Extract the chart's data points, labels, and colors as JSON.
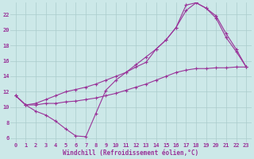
{
  "xlabel": "Windchill (Refroidissement éolien,°C)",
  "xlim": [
    -0.5,
    23.5
  ],
  "ylim": [
    5.5,
    23.5
  ],
  "xticks": [
    0,
    1,
    2,
    3,
    4,
    5,
    6,
    7,
    8,
    9,
    10,
    11,
    12,
    13,
    14,
    15,
    16,
    17,
    18,
    19,
    20,
    21,
    22,
    23
  ],
  "yticks": [
    6,
    8,
    10,
    12,
    14,
    16,
    18,
    20,
    22
  ],
  "bg_color": "#cce8e8",
  "grid_color": "#aacccc",
  "line_color": "#993399",
  "line1_x": [
    0,
    1,
    2,
    3,
    4,
    5,
    6,
    7,
    8,
    9,
    10,
    11,
    12,
    13,
    14,
    15,
    16,
    17,
    18,
    19,
    20,
    21,
    22,
    23
  ],
  "line1_y": [
    11.5,
    10.3,
    9.5,
    9.0,
    8.2,
    7.2,
    6.3,
    6.2,
    9.2,
    12.2,
    13.5,
    14.5,
    15.5,
    16.5,
    17.5,
    18.7,
    20.3,
    23.2,
    23.5,
    22.8,
    21.5,
    19.0,
    17.2,
    15.2
  ],
  "line2_x": [
    0,
    1,
    2,
    3,
    4,
    5,
    6,
    7,
    8,
    9,
    10,
    11,
    12,
    13,
    14,
    15,
    16,
    17,
    18,
    19,
    20,
    21,
    22,
    23
  ],
  "line2_y": [
    11.5,
    10.3,
    10.3,
    10.5,
    10.5,
    10.7,
    10.8,
    11.0,
    11.2,
    11.5,
    11.8,
    12.2,
    12.6,
    13.0,
    13.5,
    14.0,
    14.5,
    14.8,
    15.0,
    15.0,
    15.1,
    15.1,
    15.2,
    15.2
  ],
  "line3_x": [
    0,
    1,
    2,
    3,
    4,
    5,
    6,
    7,
    8,
    9,
    10,
    11,
    12,
    13,
    14,
    15,
    16,
    17,
    18,
    19,
    20,
    21,
    22,
    23
  ],
  "line3_y": [
    11.5,
    10.3,
    10.5,
    11.0,
    11.5,
    12.0,
    12.3,
    12.6,
    13.0,
    13.5,
    14.0,
    14.5,
    15.2,
    15.8,
    17.5,
    18.7,
    20.3,
    22.5,
    23.5,
    22.8,
    21.8,
    19.5,
    17.5,
    15.2
  ]
}
